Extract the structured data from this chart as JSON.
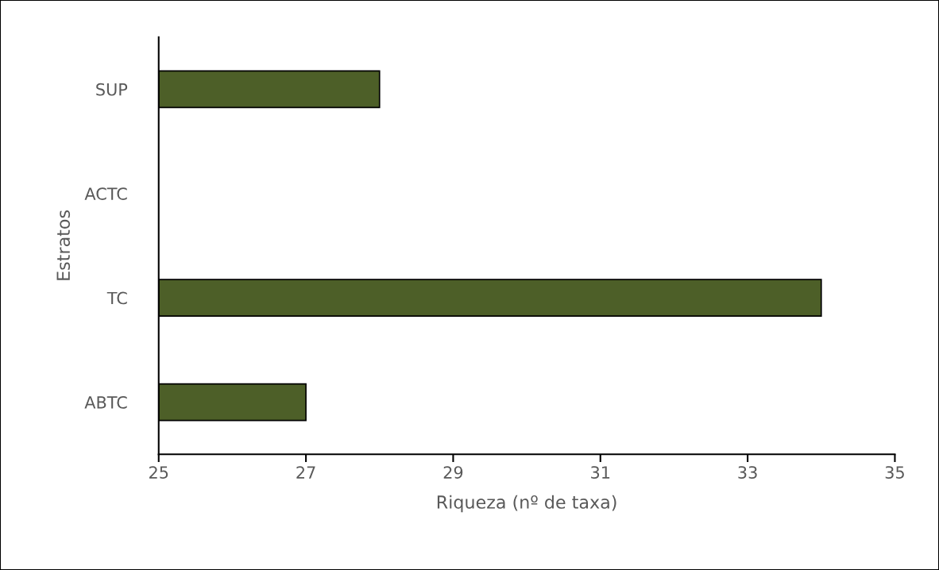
{
  "chart_data": {
    "type": "bar",
    "orientation": "horizontal",
    "categories": [
      "SUP",
      "ACTC",
      "TC",
      "ABTC"
    ],
    "values": [
      28,
      null,
      34,
      27
    ],
    "color": "#4d5f28",
    "xlabel": "Riqueza (nº de taxa)",
    "ylabel": "Estratos",
    "xlim": [
      25,
      35
    ],
    "xticks": [
      25,
      27,
      29,
      31,
      33,
      35
    ],
    "grid": false,
    "legend": false
  }
}
